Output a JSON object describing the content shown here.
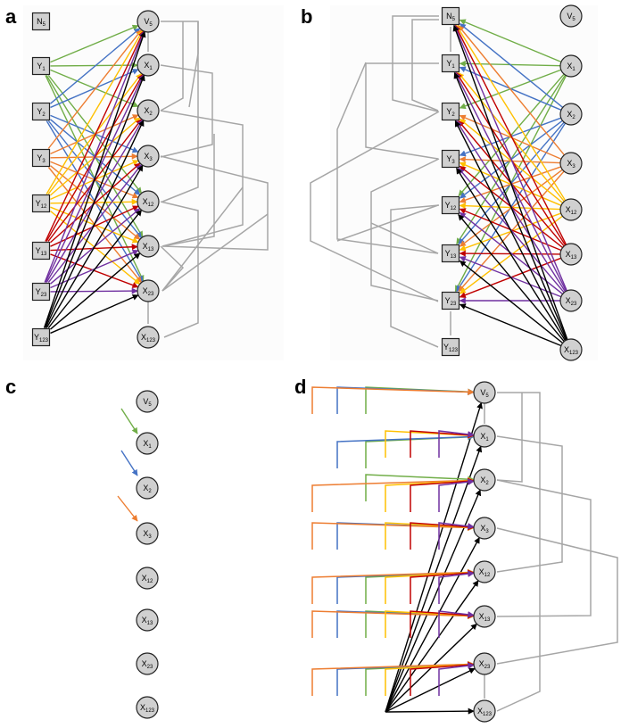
{
  "panels": [
    {
      "id": "a",
      "label": "a",
      "nodes": [
        {
          "id": "N5",
          "shape": "square",
          "base": "N",
          "sub": "5"
        },
        {
          "id": "Y1",
          "shape": "square",
          "base": "Y",
          "sub": "1"
        },
        {
          "id": "Y2",
          "shape": "square",
          "base": "Y",
          "sub": "2"
        },
        {
          "id": "Y3",
          "shape": "square",
          "base": "Y",
          "sub": "3"
        },
        {
          "id": "Y12",
          "shape": "square",
          "base": "Y",
          "sub": "12"
        },
        {
          "id": "Y13",
          "shape": "square",
          "base": "Y",
          "sub": "13"
        },
        {
          "id": "Y23",
          "shape": "square",
          "base": "Y",
          "sub": "23"
        },
        {
          "id": "Y123",
          "shape": "square",
          "base": "Y",
          "sub": "123"
        },
        {
          "id": "V5",
          "shape": "circle",
          "base": "V",
          "sub": "5"
        },
        {
          "id": "X1",
          "shape": "circle",
          "base": "X",
          "sub": "1"
        },
        {
          "id": "X2",
          "shape": "circle",
          "base": "X",
          "sub": "2"
        },
        {
          "id": "X3",
          "shape": "circle",
          "base": "X",
          "sub": "3"
        },
        {
          "id": "X12",
          "shape": "circle",
          "base": "X",
          "sub": "12"
        },
        {
          "id": "X13",
          "shape": "circle",
          "base": "X",
          "sub": "13"
        },
        {
          "id": "X23",
          "shape": "circle",
          "base": "X",
          "sub": "23"
        },
        {
          "id": "X123",
          "shape": "circle",
          "base": "X",
          "sub": "123"
        }
      ]
    },
    {
      "id": "b",
      "label": "b",
      "nodes": [
        {
          "id": "N5",
          "shape": "square",
          "base": "N",
          "sub": "5"
        },
        {
          "id": "Y1",
          "shape": "square",
          "base": "Y",
          "sub": "1"
        },
        {
          "id": "Y2",
          "shape": "square",
          "base": "Y",
          "sub": "2"
        },
        {
          "id": "Y3",
          "shape": "square",
          "base": "Y",
          "sub": "3"
        },
        {
          "id": "Y12",
          "shape": "square",
          "base": "Y",
          "sub": "12"
        },
        {
          "id": "Y13",
          "shape": "square",
          "base": "Y",
          "sub": "13"
        },
        {
          "id": "Y23",
          "shape": "square",
          "base": "Y",
          "sub": "23"
        },
        {
          "id": "Y123",
          "shape": "square",
          "base": "Y",
          "sub": "123"
        },
        {
          "id": "V5",
          "shape": "circle",
          "base": "V",
          "sub": "5"
        },
        {
          "id": "X1",
          "shape": "circle",
          "base": "X",
          "sub": "1"
        },
        {
          "id": "X2",
          "shape": "circle",
          "base": "X",
          "sub": "2"
        },
        {
          "id": "X3",
          "shape": "circle",
          "base": "X",
          "sub": "3"
        },
        {
          "id": "X12",
          "shape": "circle",
          "base": "X",
          "sub": "12"
        },
        {
          "id": "X13",
          "shape": "circle",
          "base": "X",
          "sub": "13"
        },
        {
          "id": "X23",
          "shape": "circle",
          "base": "X",
          "sub": "23"
        },
        {
          "id": "X123",
          "shape": "circle",
          "base": "X",
          "sub": "123"
        }
      ]
    },
    {
      "id": "c",
      "label": "c",
      "nodes": [
        {
          "id": "V5",
          "shape": "circle",
          "base": "V",
          "sub": "5"
        },
        {
          "id": "X1",
          "shape": "circle",
          "base": "X",
          "sub": "1"
        },
        {
          "id": "X2",
          "shape": "circle",
          "base": "X",
          "sub": "2"
        },
        {
          "id": "X3",
          "shape": "circle",
          "base": "X",
          "sub": "3"
        },
        {
          "id": "X12",
          "shape": "circle",
          "base": "X",
          "sub": "12"
        },
        {
          "id": "X13",
          "shape": "circle",
          "base": "X",
          "sub": "13"
        },
        {
          "id": "X23",
          "shape": "circle",
          "base": "X",
          "sub": "23"
        },
        {
          "id": "X123",
          "shape": "circle",
          "base": "X",
          "sub": "123"
        }
      ]
    },
    {
      "id": "d",
      "label": "d",
      "nodes": [
        {
          "id": "V5",
          "shape": "circle",
          "base": "V",
          "sub": "5"
        },
        {
          "id": "X1",
          "shape": "circle",
          "base": "X",
          "sub": "1"
        },
        {
          "id": "X2",
          "shape": "circle",
          "base": "X",
          "sub": "2"
        },
        {
          "id": "X3",
          "shape": "circle",
          "base": "X",
          "sub": "3"
        },
        {
          "id": "X12",
          "shape": "circle",
          "base": "X",
          "sub": "12"
        },
        {
          "id": "X13",
          "shape": "circle",
          "base": "X",
          "sub": "13"
        },
        {
          "id": "X23",
          "shape": "circle",
          "base": "X",
          "sub": "23"
        },
        {
          "id": "X123",
          "shape": "circle",
          "base": "X",
          "sub": "123"
        }
      ]
    }
  ],
  "colors": {
    "node_fill": "#d0d0d0",
    "node_stroke": "#222222",
    "gray_edge": "#a6a6a6",
    "green": "#70ad47",
    "blue": "#4472c4",
    "orange": "#ed7d31",
    "yellow": "#ffc000",
    "red": "#c00000",
    "purple": "#7030a0",
    "black": "#000000"
  }
}
